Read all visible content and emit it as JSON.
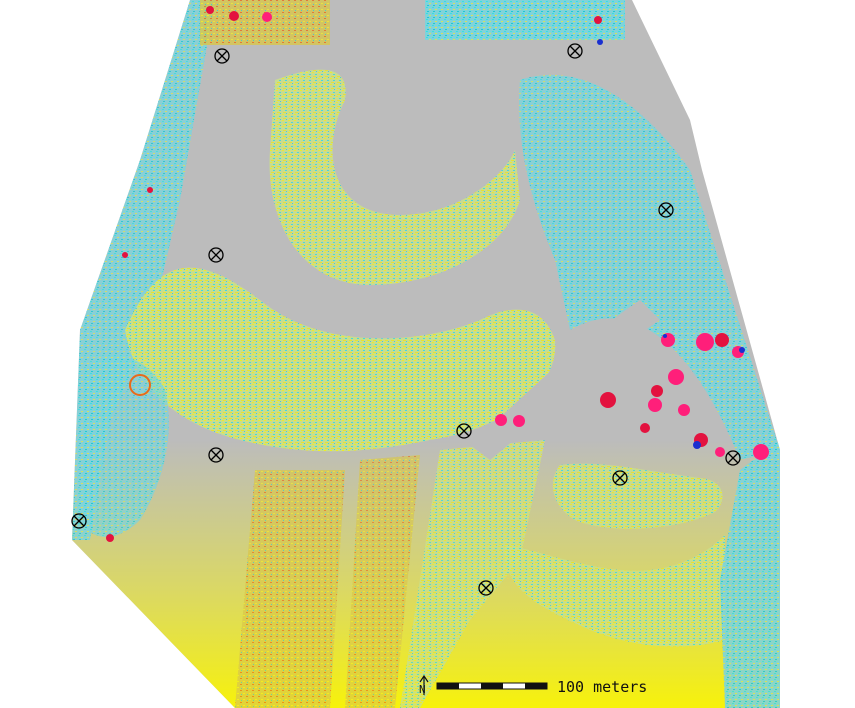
{
  "map": {
    "scale_bar": {
      "label": "100 meters",
      "north_label": "N"
    },
    "colors": {
      "background": "#ffffff",
      "ground": "#bcbcbc",
      "cyan": "#33e0e6",
      "yellow": "#f2ee20",
      "red": "#e3123f",
      "pink": "#ff1f7a",
      "blue": "#1a2fd0",
      "orange": "#e86a1a"
    },
    "marker_count": 12
  }
}
